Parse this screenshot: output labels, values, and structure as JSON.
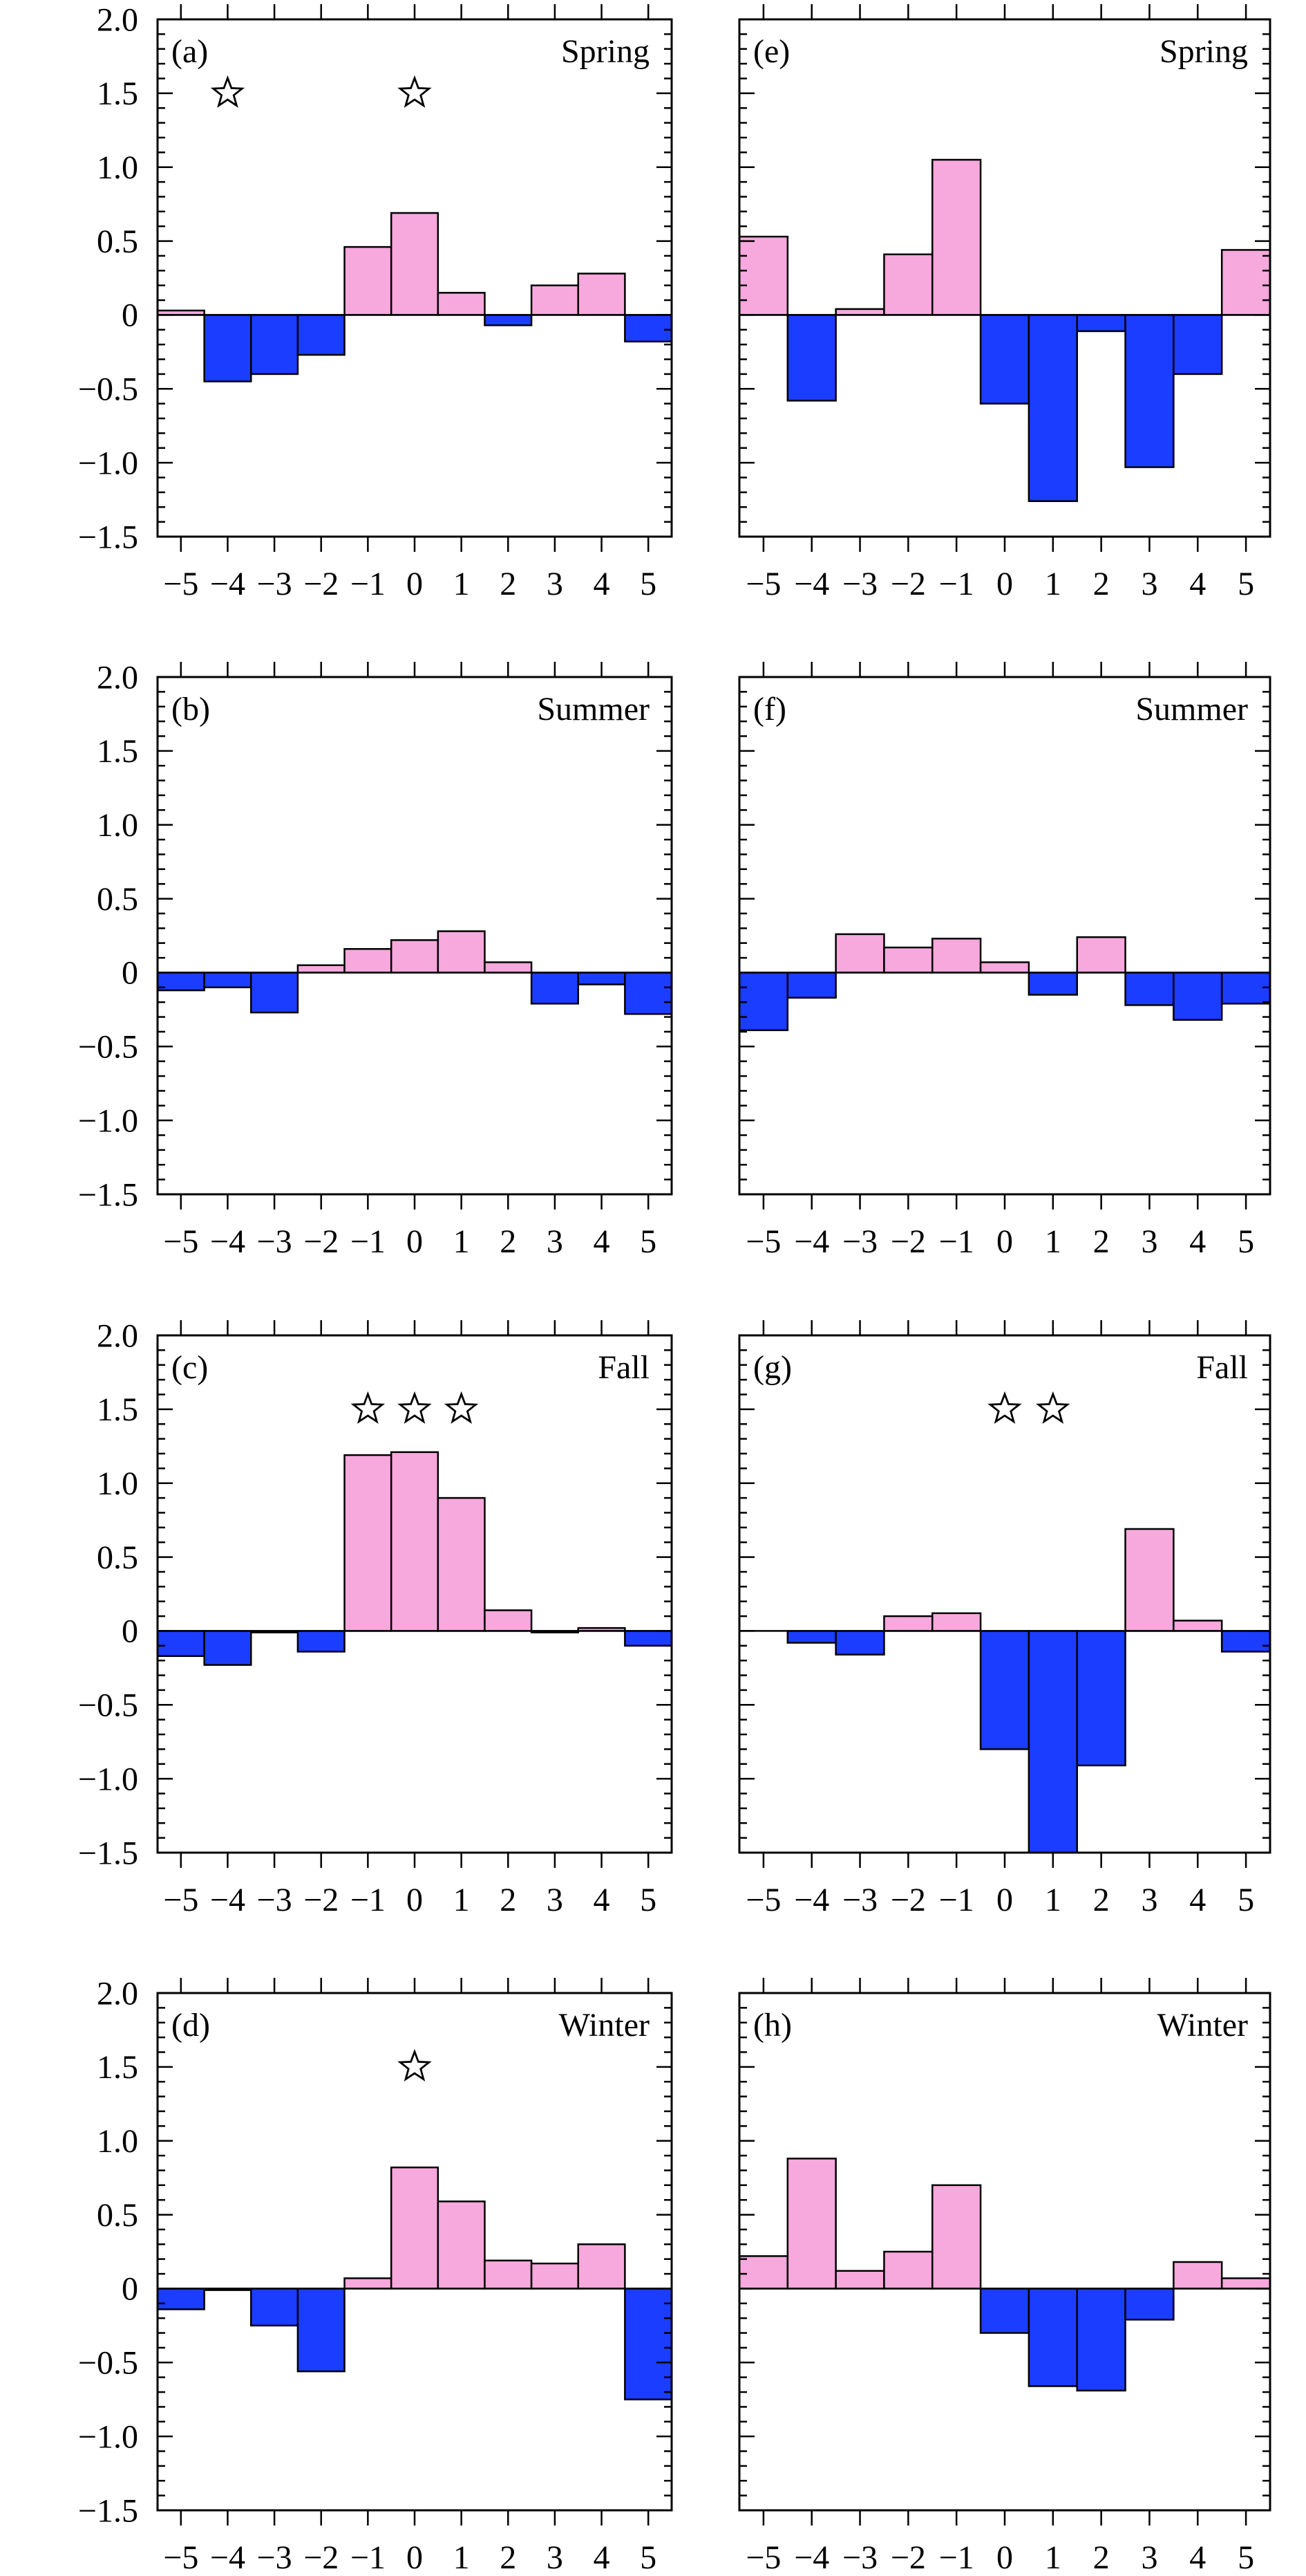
{
  "colors": {
    "positive": "#F7A8DC",
    "negative": "#1B3DFF",
    "outline": "#000000",
    "background": "#ffffff"
  },
  "chart_data": [
    {
      "panel": "(a)",
      "season": "Spring",
      "type": "bar",
      "column": "left",
      "x": [
        -5,
        -4,
        -3,
        -2,
        -1,
        0,
        1,
        2,
        3,
        4,
        5
      ],
      "values": [
        0.03,
        -0.45,
        -0.4,
        -0.27,
        0.46,
        0.69,
        0.15,
        -0.07,
        0.2,
        0.28,
        -0.18
      ],
      "stars": [
        -4,
        0
      ],
      "ylim": [
        -1.5,
        2.0
      ],
      "yticks": [
        -1.5,
        -1.0,
        -0.5,
        0,
        0.5,
        1.0,
        1.5,
        2.0
      ],
      "yticklabels": [
        "−1.5",
        "−1.0",
        "−0.5",
        "0",
        "0.5",
        "1.0",
        "1.5",
        "2.0"
      ],
      "xticklabels": [
        "−5",
        "−4",
        "−3",
        "−2",
        "−1",
        "0",
        "1",
        "2",
        "3",
        "4",
        "5"
      ]
    },
    {
      "panel": "(b)",
      "season": "Summer",
      "type": "bar",
      "column": "left",
      "x": [
        -5,
        -4,
        -3,
        -2,
        -1,
        0,
        1,
        2,
        3,
        4,
        5
      ],
      "values": [
        -0.12,
        -0.1,
        -0.27,
        0.05,
        0.16,
        0.22,
        0.28,
        0.07,
        -0.21,
        -0.08,
        -0.28
      ],
      "stars": [],
      "ylim": [
        -1.5,
        2.0
      ],
      "yticks": [
        -1.5,
        -1.0,
        -0.5,
        0,
        0.5,
        1.0,
        1.5,
        2.0
      ],
      "yticklabels": [
        "−1.5",
        "−1.0",
        "−0.5",
        "0",
        "0.5",
        "1.0",
        "1.5",
        "2.0"
      ],
      "xticklabels": [
        "−5",
        "−4",
        "−3",
        "−2",
        "−1",
        "0",
        "1",
        "2",
        "3",
        "4",
        "5"
      ]
    },
    {
      "panel": "(c)",
      "season": "Fall",
      "type": "bar",
      "column": "left",
      "x": [
        -5,
        -4,
        -3,
        -2,
        -1,
        0,
        1,
        2,
        3,
        4,
        5
      ],
      "values": [
        -0.17,
        -0.23,
        -0.01,
        -0.14,
        1.19,
        1.21,
        0.9,
        0.14,
        -0.01,
        0.02,
        -0.1
      ],
      "stars": [
        -1,
        0,
        1
      ],
      "ylim": [
        -1.5,
        2.0
      ],
      "yticks": [
        -1.5,
        -1.0,
        -0.5,
        0,
        0.5,
        1.0,
        1.5,
        2.0
      ],
      "yticklabels": [
        "−1.5",
        "−1.0",
        "−0.5",
        "0",
        "0.5",
        "1.0",
        "1.5",
        "2.0"
      ],
      "xticklabels": [
        "−5",
        "−4",
        "−3",
        "−2",
        "−1",
        "0",
        "1",
        "2",
        "3",
        "4",
        "5"
      ]
    },
    {
      "panel": "(d)",
      "season": "Winter",
      "type": "bar",
      "column": "left",
      "x": [
        -5,
        -4,
        -3,
        -2,
        -1,
        0,
        1,
        2,
        3,
        4,
        5
      ],
      "values": [
        -0.14,
        -0.01,
        -0.25,
        -0.56,
        0.07,
        0.82,
        0.59,
        0.19,
        0.17,
        0.3,
        -0.75
      ],
      "stars": [
        0
      ],
      "ylim": [
        -1.5,
        2.0
      ],
      "yticks": [
        -1.5,
        -1.0,
        -0.5,
        0,
        0.5,
        1.0,
        1.5,
        2.0
      ],
      "yticklabels": [
        "−1.5",
        "−1.0",
        "−0.5",
        "0",
        "0.5",
        "1.0",
        "1.5",
        "2.0"
      ],
      "xticklabels": [
        "−5",
        "−4",
        "−3",
        "−2",
        "−1",
        "0",
        "1",
        "2",
        "3",
        "4",
        "5"
      ]
    },
    {
      "panel": "(e)",
      "season": "Spring",
      "type": "bar",
      "column": "right",
      "x": [
        -5,
        -4,
        -3,
        -2,
        -1,
        0,
        1,
        2,
        3,
        4,
        5
      ],
      "values": [
        0.53,
        -0.58,
        0.04,
        0.41,
        1.05,
        -0.6,
        -1.26,
        -0.11,
        -1.03,
        -0.4,
        0.44
      ],
      "stars": [],
      "ylim": [
        -1.5,
        2.0
      ],
      "yticks": [
        -1.5,
        -1.0,
        -0.5,
        0,
        0.5,
        1.0,
        1.5,
        2.0
      ],
      "yticklabels": [],
      "xticklabels": [
        "−5",
        "−4",
        "−3",
        "−2",
        "−1",
        "0",
        "1",
        "2",
        "3",
        "4",
        "5"
      ]
    },
    {
      "panel": "(f)",
      "season": "Summer",
      "type": "bar",
      "column": "right",
      "x": [
        -5,
        -4,
        -3,
        -2,
        -1,
        0,
        1,
        2,
        3,
        4,
        5
      ],
      "values": [
        -0.39,
        -0.17,
        0.26,
        0.17,
        0.23,
        0.07,
        -0.15,
        0.24,
        -0.22,
        -0.32,
        -0.21
      ],
      "stars": [],
      "ylim": [
        -1.5,
        2.0
      ],
      "yticks": [
        -1.5,
        -1.0,
        -0.5,
        0,
        0.5,
        1.0,
        1.5,
        2.0
      ],
      "yticklabels": [],
      "xticklabels": [
        "−5",
        "−4",
        "−3",
        "−2",
        "−1",
        "0",
        "1",
        "2",
        "3",
        "4",
        "5"
      ]
    },
    {
      "panel": "(g)",
      "season": "Fall",
      "type": "bar",
      "column": "right",
      "x": [
        -5,
        -4,
        -3,
        -2,
        -1,
        0,
        1,
        2,
        3,
        4,
        5
      ],
      "values": [
        0.0,
        -0.08,
        -0.16,
        0.1,
        0.12,
        -0.8,
        -1.55,
        -0.91,
        0.69,
        0.07,
        -0.14
      ],
      "stars": [
        0,
        1
      ],
      "ylim": [
        -1.5,
        2.0
      ],
      "yticks": [
        -1.5,
        -1.0,
        -0.5,
        0,
        0.5,
        1.0,
        1.5,
        2.0
      ],
      "yticklabels": [],
      "xticklabels": [
        "−5",
        "−4",
        "−3",
        "−2",
        "−1",
        "0",
        "1",
        "2",
        "3",
        "4",
        "5"
      ]
    },
    {
      "panel": "(h)",
      "season": "Winter",
      "type": "bar",
      "column": "right",
      "x": [
        -5,
        -4,
        -3,
        -2,
        -1,
        0,
        1,
        2,
        3,
        4,
        5
      ],
      "values": [
        0.22,
        0.88,
        0.12,
        0.25,
        0.7,
        -0.3,
        -0.66,
        -0.69,
        -0.21,
        0.18,
        0.07
      ],
      "stars": [],
      "ylim": [
        -1.5,
        2.0
      ],
      "yticks": [
        -1.5,
        -1.0,
        -0.5,
        0,
        0.5,
        1.0,
        1.5,
        2.0
      ],
      "yticklabels": [],
      "xticklabels": [
        "−5",
        "−4",
        "−3",
        "−2",
        "−1",
        "0",
        "1",
        "2",
        "3",
        "4",
        "5"
      ]
    }
  ]
}
